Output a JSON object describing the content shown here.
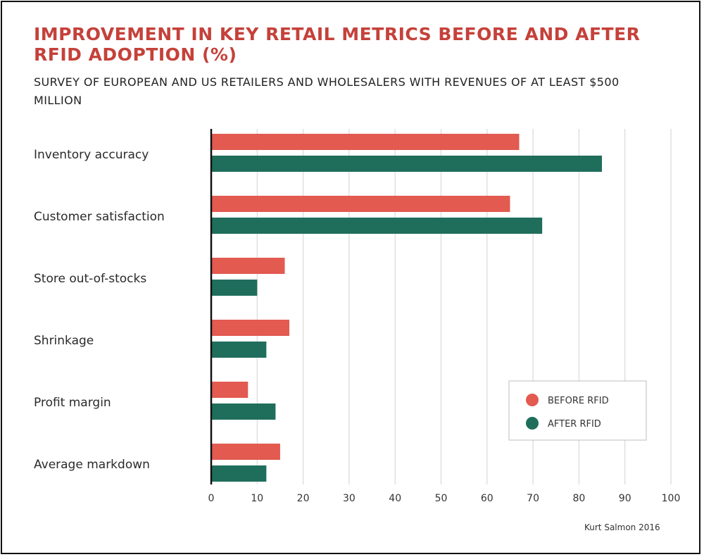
{
  "chart_data": {
    "type": "bar",
    "orientation": "horizontal",
    "title": "IMPROVEMENT IN KEY RETAIL METRICS BEFORE AND AFTER RFID ADOPTION (%)",
    "subtitle": "SURVEY OF EUROPEAN AND US RETAILERS AND WHOLESALERS WITH REVENUES OF AT LEAST $500 MILLION",
    "categories": [
      "Inventory accuracy",
      "Customer satisfaction",
      "Store out-of-stocks",
      "Shrinkage",
      "Profit margin",
      "Average markdown"
    ],
    "series": [
      {
        "name": "BEFORE RFID",
        "color": "#e25a50",
        "values": [
          67,
          65,
          16,
          17,
          8,
          15
        ]
      },
      {
        "name": "AFTER RFID",
        "color": "#1f6e5c",
        "values": [
          85,
          72,
          10,
          12,
          14,
          12
        ]
      }
    ],
    "xlim": [
      0,
      100
    ],
    "xticks": [
      "0",
      "10",
      "20",
      "30",
      "40",
      "50",
      "60",
      "70",
      "80",
      "90",
      "100"
    ],
    "grid": true,
    "legend_position": "bottom-right",
    "source": "Kurt Salmon 2016"
  }
}
